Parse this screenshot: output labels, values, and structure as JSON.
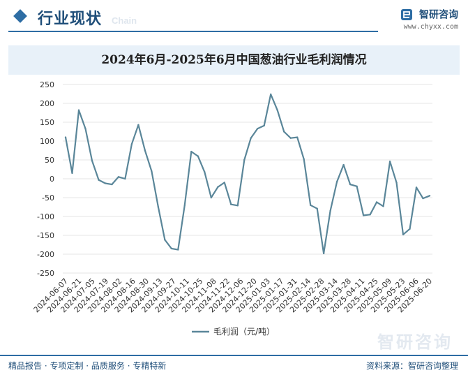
{
  "header": {
    "title": "行业现状",
    "title_en": "Chain",
    "brand_name": "智研咨询",
    "brand_url": "www.chyxx.com"
  },
  "watermark": "智研咨询",
  "footer": {
    "left": "精品报告 · 专项定制 · 品质服务 · 专精特新",
    "right": "资料来源：智研咨询整理"
  },
  "colors": {
    "line": "#5a8699",
    "accent": "#2e6da4",
    "grid": "#e6e6e6"
  },
  "chart_data": {
    "type": "line",
    "title": "2024年6月-2025年6月中国葱油行业毛利润情况",
    "xlabel": "",
    "ylabel": "",
    "ylim": [
      -250,
      250
    ],
    "yticks": [
      -250,
      -200,
      -150,
      -100,
      -50,
      0,
      50,
      100,
      150,
      200,
      250
    ],
    "grid": "horizontal",
    "legend": "bottom-center",
    "x_ticks": [
      "2024-06-07",
      "2024-06-21",
      "2024-07-05",
      "2024-07-19",
      "2024-08-02",
      "2024-08-16",
      "2024-08-30",
      "2024-09-13",
      "2024-09-27",
      "2024-10-11",
      "2024-10-25",
      "2024-11-08",
      "2024-11-22",
      "2024-12-06",
      "2024-12-20",
      "2025-01-03",
      "2025-01-17",
      "2025-01-31",
      "2025-02-14",
      "2025-02-28",
      "2025-03-14",
      "2025-03-28",
      "2025-04-11",
      "2025-04-25",
      "2025-05-09",
      "2025-05-23",
      "2025-06-06",
      "2025-06-20"
    ],
    "series": [
      {
        "name": "毛利润（元/吨）",
        "values": [
          110,
          15,
          182,
          133,
          48,
          -3,
          -12,
          -15,
          5,
          0,
          92,
          143,
          75,
          20,
          -75,
          -162,
          -185,
          -188,
          -70,
          72,
          60,
          18,
          -50,
          -22,
          -10,
          -68,
          -71,
          50,
          108,
          133,
          141,
          224,
          182,
          125,
          108,
          110,
          52,
          -70,
          -79,
          -198,
          -85,
          -8,
          37,
          -15,
          -20,
          -97,
          -95,
          -62,
          -73,
          46,
          -10,
          -148,
          -133,
          -23,
          -52,
          -45
        ]
      }
    ]
  }
}
